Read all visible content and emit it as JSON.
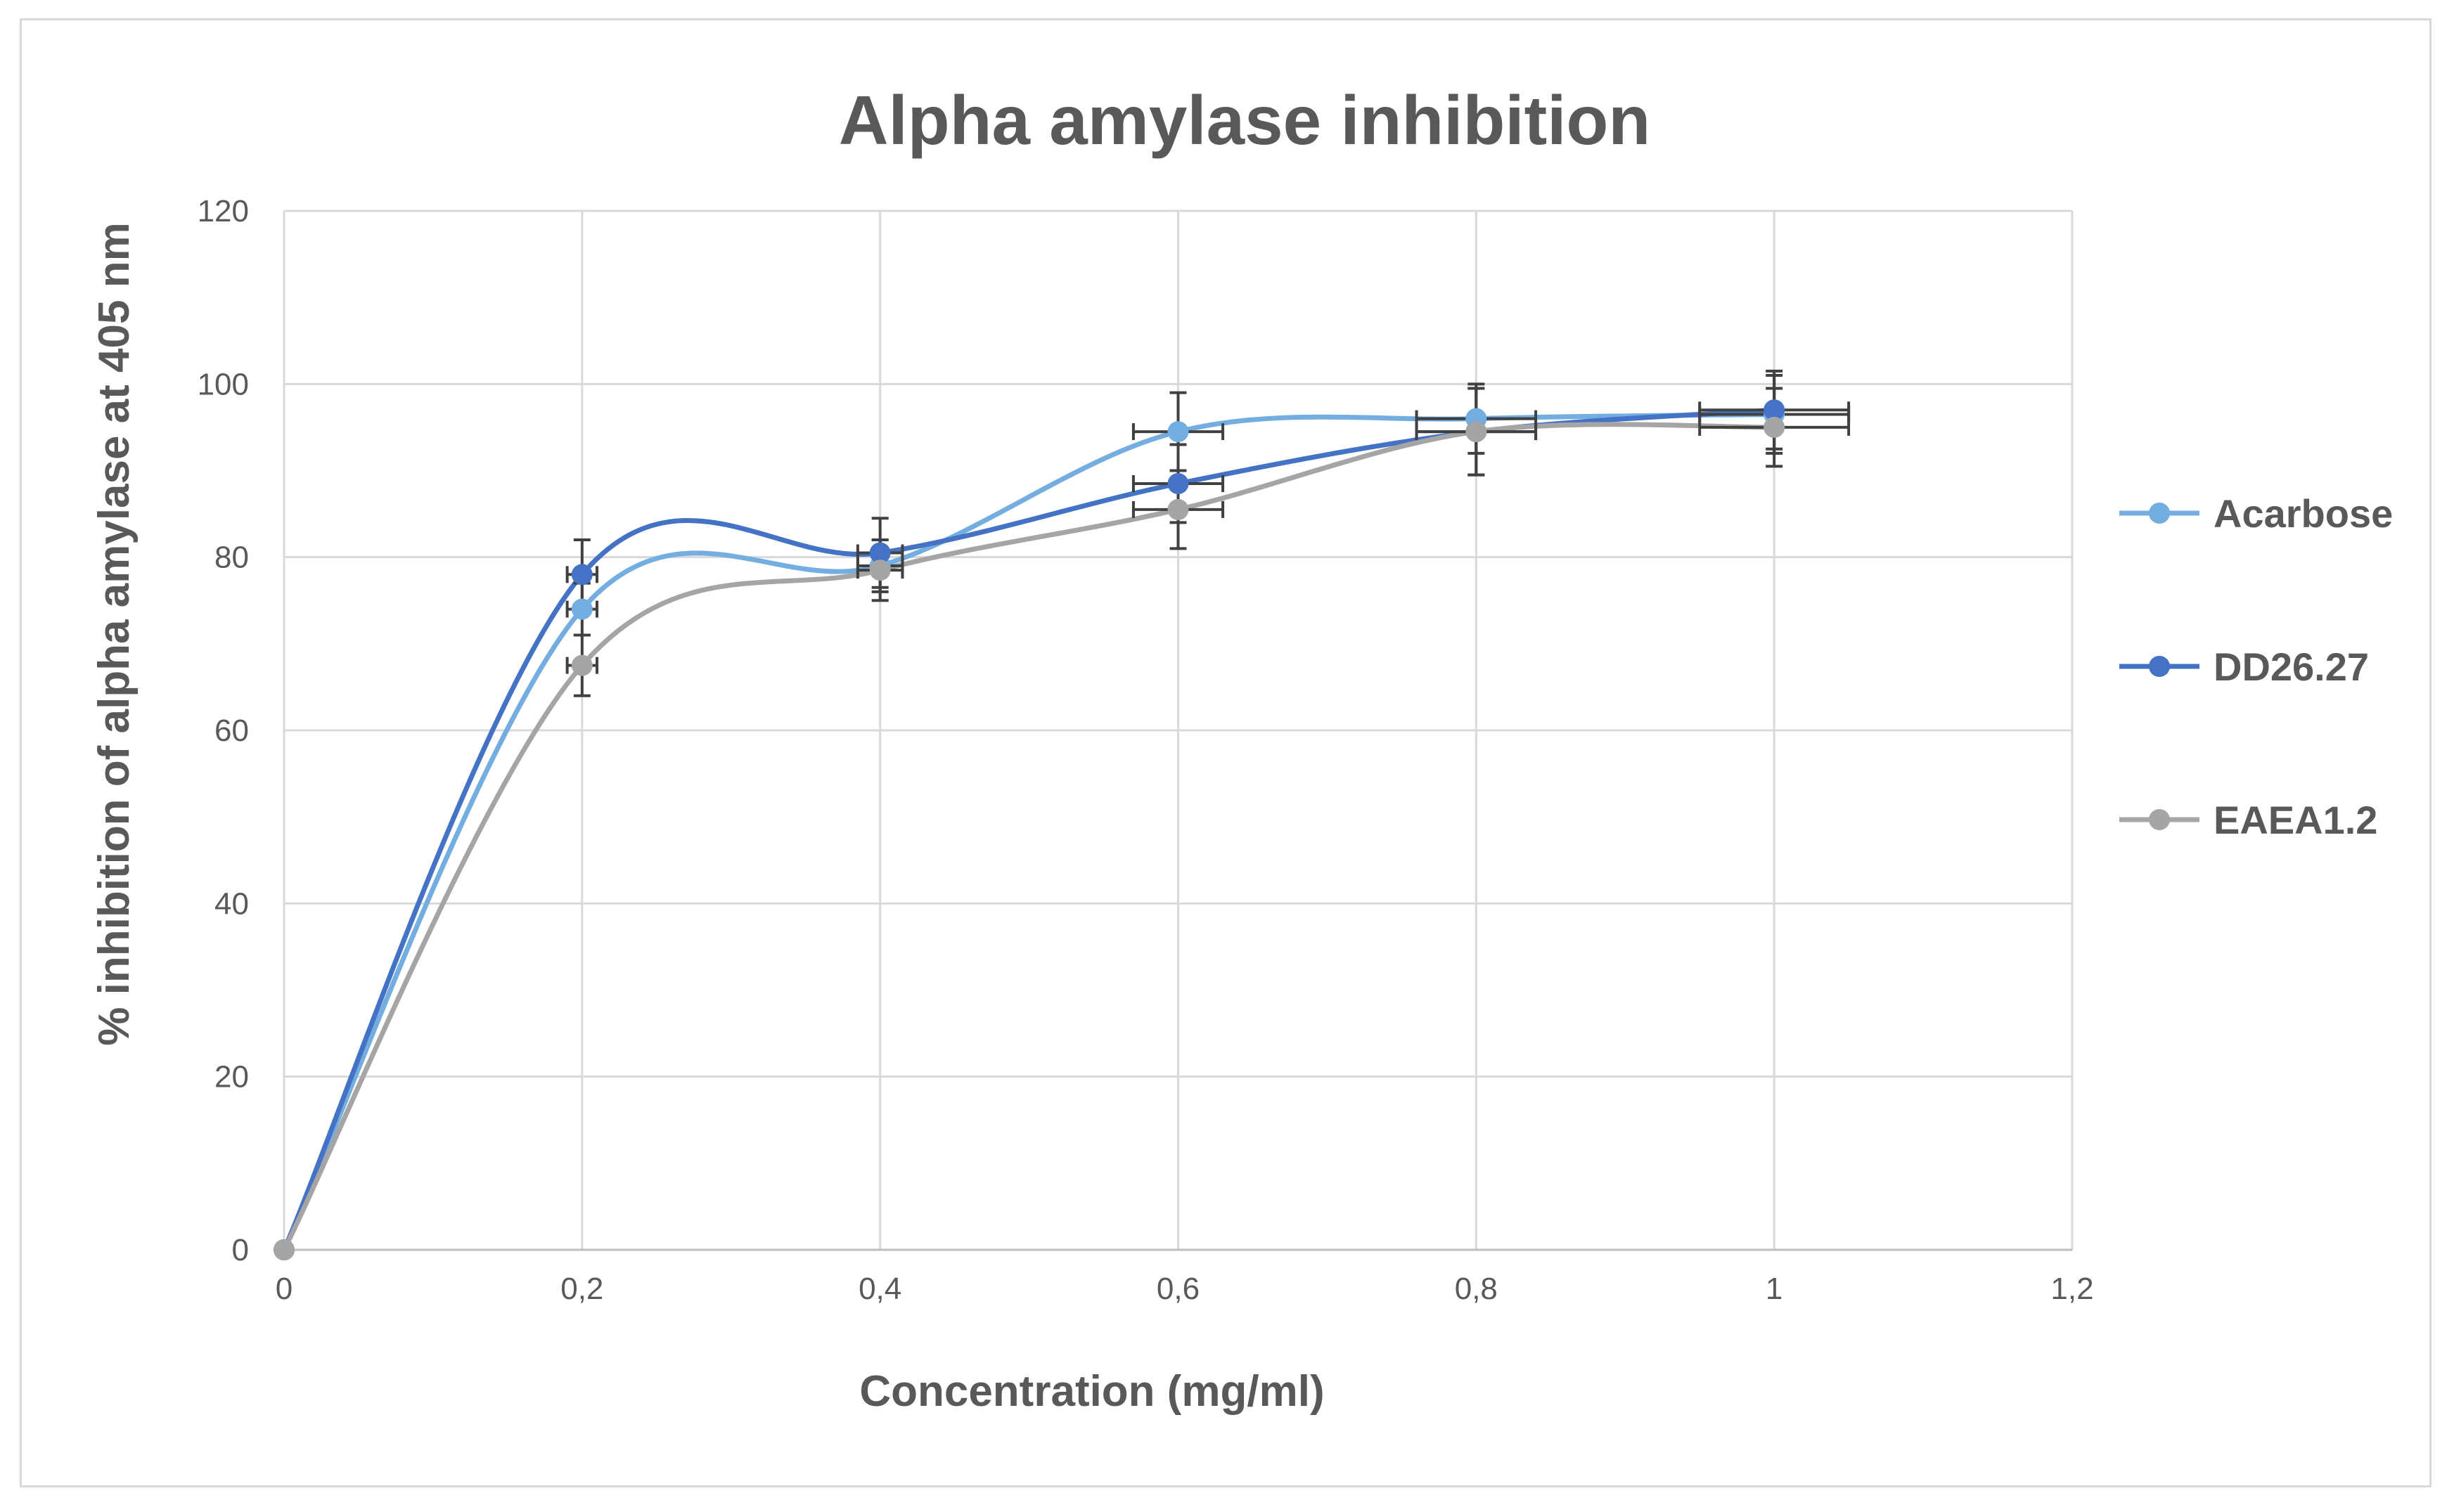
{
  "chart_data": {
    "type": "line",
    "title": "Alpha amylase inhibition",
    "xlabel": "Concentration  (mg/ml)",
    "ylabel": "% inhibition of alpha amylase  at 405 nm",
    "xlim": [
      0,
      1.2
    ],
    "ylim": [
      0,
      120
    ],
    "x_ticks": [
      "0",
      "0,2",
      "0,4",
      "0,6",
      "0,8",
      "1",
      "1,2"
    ],
    "y_ticks": [
      "0",
      "20",
      "40",
      "60",
      "80",
      "100",
      "120"
    ],
    "grid": true,
    "legend_position": "right",
    "x": [
      0,
      0.2,
      0.4,
      0.6,
      0.8,
      1.0
    ],
    "series": [
      {
        "name": "Acarbose",
        "color": "#74aee0",
        "values": [
          0,
          74,
          79,
          94.5,
          96,
          96.5
        ],
        "y_error": [
          0,
          3,
          3,
          4.5,
          4,
          4.5
        ],
        "x_error": [
          0,
          0.01,
          0.015,
          0.03,
          0.04,
          0.05
        ]
      },
      {
        "name": "DD26.27",
        "color": "#4472c4",
        "values": [
          0,
          78,
          80.5,
          88.5,
          94.5,
          97
        ],
        "y_error": [
          0,
          4,
          4,
          4.5,
          5,
          4.5
        ],
        "x_error": [
          0,
          0.01,
          0.015,
          0.03,
          0.04,
          0.05
        ]
      },
      {
        "name": "EAEA1.2",
        "color": "#a5a5a5",
        "values": [
          0,
          67.5,
          78.5,
          85.5,
          94.5,
          95
        ],
        "y_error": [
          0,
          3.5,
          3.5,
          4.5,
          5,
          4.5
        ],
        "x_error": [
          0,
          0.01,
          0.015,
          0.03,
          0.04,
          0.05
        ]
      }
    ]
  }
}
